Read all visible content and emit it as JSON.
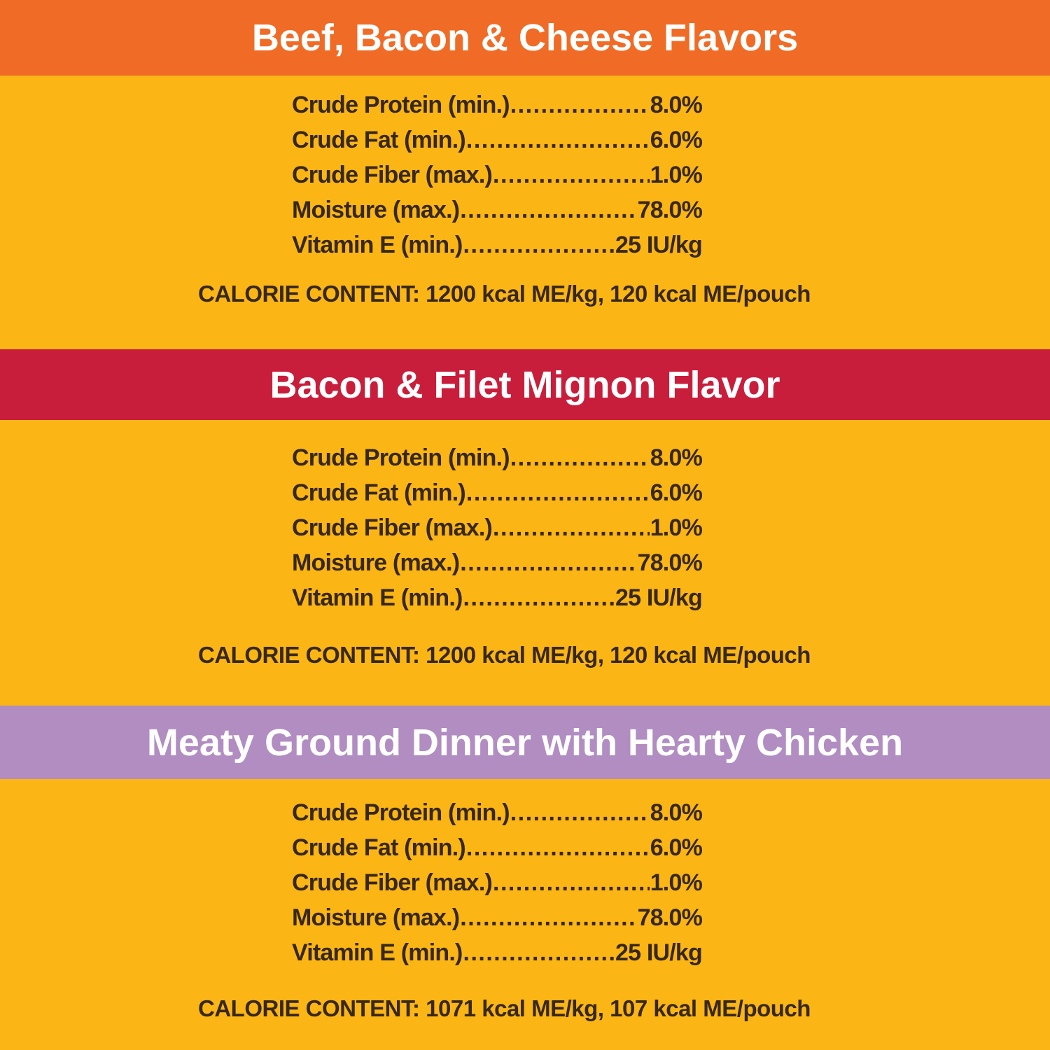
{
  "colors": {
    "background": "#FBB615",
    "banner_text": "#FFFFFF",
    "body_text": "#38281A",
    "section1_banner": "#F06C26",
    "section2_banner": "#C81E3C",
    "section3_banner": "#B18DC2"
  },
  "sections": [
    {
      "title": "Beef, Bacon & Cheese Flavors",
      "accent": "#F06C26",
      "rows": [
        {
          "label": "Crude Protein (min.)",
          "value": "8.0%"
        },
        {
          "label": "Crude Fat (min.)",
          "value": "6.0%"
        },
        {
          "label": "Crude Fiber (max.)",
          "value": "1.0%"
        },
        {
          "label": "Moisture (max.)",
          "value": "78.0%"
        },
        {
          "label": "Vitamin E (min.)",
          "value": "25 IU/kg"
        }
      ],
      "calorie": "CALORIE CONTENT: 1200 kcal ME/kg, 120 kcal ME/pouch"
    },
    {
      "title": "Bacon & Filet Mignon Flavor",
      "accent": "#C81E3C",
      "rows": [
        {
          "label": "Crude Protein (min.)",
          "value": "8.0%"
        },
        {
          "label": "Crude Fat (min.)",
          "value": "6.0%"
        },
        {
          "label": "Crude Fiber (max.)",
          "value": "1.0%"
        },
        {
          "label": "Moisture (max.)",
          "value": "78.0%"
        },
        {
          "label": "Vitamin E (min.)",
          "value": "25 IU/kg"
        }
      ],
      "calorie": "CALORIE CONTENT: 1200 kcal ME/kg, 120 kcal ME/pouch"
    },
    {
      "title": "Meaty Ground Dinner with Hearty Chicken",
      "accent": "#B18DC2",
      "rows": [
        {
          "label": "Crude Protein (min.)",
          "value": "8.0%"
        },
        {
          "label": "Crude Fat (min.)",
          "value": "6.0%"
        },
        {
          "label": "Crude Fiber (max.)",
          "value": "1.0%"
        },
        {
          "label": "Moisture (max.)",
          "value": "78.0%"
        },
        {
          "label": "Vitamin E (min.)",
          "value": "25 IU/kg"
        }
      ],
      "calorie": "CALORIE CONTENT: 1071 kcal ME/kg, 107 kcal ME/pouch"
    }
  ]
}
